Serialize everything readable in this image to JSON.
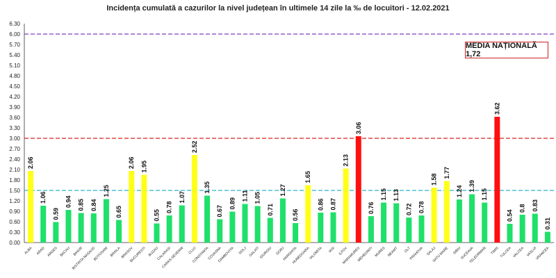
{
  "chart_data": {
    "type": "bar",
    "title": "Incidența cumulată a cazurilor la nivel județean în ultimele 14 zile la ‰ de locuitori - 12.02.2021",
    "annotation": "MEDIA NAȚIONALĂ 1,72",
    "ylim": [
      0,
      6.3
    ],
    "yticks": [
      "0.00",
      "0.30",
      "0.60",
      "0.90",
      "1.20",
      "1.50",
      "1.80",
      "2.10",
      "2.40",
      "2.70",
      "3.00",
      "3.30",
      "3.60",
      "3.90",
      "4.20",
      "4.50",
      "4.80",
      "5.10",
      "5.40",
      "5.70",
      "6.00",
      "6.30"
    ],
    "reference_lines": [
      {
        "value": 6.0,
        "color": "#7a3fbf",
        "style": "dashed"
      },
      {
        "value": 3.0,
        "color": "#d62020",
        "style": "dashed"
      },
      {
        "value": 1.5,
        "color": "#2bb5c9",
        "style": "dashed"
      }
    ],
    "colors": {
      "low": "#1fe06a",
      "medium": "#ffff1a",
      "high": "#ff1010"
    },
    "categories": [
      "ALBA",
      "ARAD",
      "ARGES",
      "BACAU",
      "BIHOR",
      "BISTRITA NASAUD",
      "BOTOSANI",
      "BRAILA",
      "BRASOV",
      "BUCURESTI",
      "BUZAU",
      "CALARASI",
      "CARAS-SEVERIN",
      "CLUJ",
      "CONSTANTA",
      "COVASNA",
      "DAMBOVITA",
      "DOLJ",
      "GALATI",
      "GIURGIU",
      "GORJ",
      "HARGHITA",
      "HUNEDOARA",
      "IALOMITA",
      "IASI",
      "ILFOV",
      "MARAMURES",
      "MEHEDINTI",
      "MURES",
      "NEAMT",
      "OLT",
      "PRAHOVA",
      "SALAJ",
      "SATU MARE",
      "SIBIU",
      "SUCEAVA",
      "TELEORMAN",
      "TIMIS",
      "TULCEA",
      "VALCEA",
      "VASLUI",
      "VRANCEA"
    ],
    "values": [
      2.06,
      1.06,
      0.59,
      0.94,
      0.85,
      0.84,
      1.25,
      0.65,
      2.06,
      1.95,
      0.55,
      0.78,
      1.07,
      2.52,
      1.35,
      0.67,
      0.89,
      1.11,
      1.05,
      0.71,
      1.27,
      0.56,
      1.65,
      0.86,
      0.87,
      2.13,
      3.06,
      0.76,
      1.15,
      1.13,
      0.72,
      0.78,
      1.58,
      1.77,
      1.24,
      1.39,
      1.15,
      3.62,
      0.54,
      0.8,
      0.83,
      0.31
    ],
    "labels": [
      "2.06",
      "1.06",
      "0.59",
      "0.94",
      "0.85",
      "0.84",
      "1.25",
      "0.65",
      "2.06",
      "1.95",
      "0.55",
      "0.78",
      "1.07",
      "2.52",
      "1.35",
      "0.67",
      "0.89",
      "1.11",
      "1.05",
      "0.71",
      "1.27",
      "0.56",
      "1.65",
      "0.86",
      "0.87",
      "2.13",
      "3.06",
      "0.76",
      "1.15",
      "1.13",
      "0.72",
      "0.78",
      "1.58",
      "1.77",
      "1.24",
      "1.39",
      "1.15",
      "3.62",
      "0.54",
      "0.8",
      "0.83",
      "0.31"
    ],
    "bar_colors": [
      "medium",
      "low",
      "low",
      "low",
      "low",
      "low",
      "low",
      "low",
      "medium",
      "medium",
      "low",
      "low",
      "low",
      "medium",
      "low",
      "low",
      "low",
      "low",
      "low",
      "low",
      "low",
      "low",
      "medium",
      "low",
      "low",
      "medium",
      "high",
      "low",
      "low",
      "low",
      "low",
      "low",
      "medium",
      "medium",
      "low",
      "low",
      "low",
      "high",
      "low",
      "low",
      "low",
      "low"
    ]
  }
}
